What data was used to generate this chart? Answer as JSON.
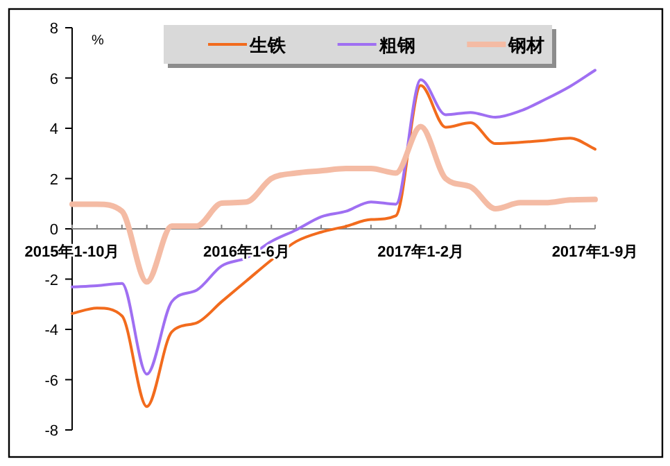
{
  "chart_data": {
    "type": "line",
    "ylabel": "%",
    "categories": [
      "2015年1-10月",
      null,
      null,
      null,
      null,
      null,
      null,
      "2016年1-6月",
      null,
      null,
      null,
      null,
      null,
      null,
      "2017年1-2月",
      null,
      null,
      null,
      null,
      null,
      null,
      "2017年1-9月"
    ],
    "ylim": [
      -8,
      8
    ],
    "yticks": [
      -8,
      -6,
      -4,
      -2,
      0,
      2,
      4,
      6,
      8
    ],
    "legend": "top",
    "series": [
      {
        "name": "生铁",
        "color": "#f26b1d",
        "values": [
          -3.37,
          -3.15,
          -3.46,
          -7.07,
          -4.1,
          -3.74,
          -2.9,
          -2.07,
          -1.24,
          -0.5,
          -0.13,
          0.1,
          0.37,
          0.52,
          5.7,
          4.04,
          4.22,
          3.39,
          3.44,
          3.52,
          3.61,
          3.17
        ]
      },
      {
        "name": "粗钢",
        "color": "#9f6ff2",
        "values": [
          -2.31,
          -2.26,
          -2.17,
          -5.78,
          -2.9,
          -2.44,
          -1.48,
          -1.15,
          -0.5,
          -0.04,
          0.48,
          0.7,
          1.07,
          0.98,
          5.93,
          4.54,
          4.63,
          4.44,
          4.69,
          5.15,
          5.67,
          6.31
        ]
      },
      {
        "name": "钢材",
        "color": "#f4bba4",
        "values": [
          0.98,
          0.98,
          0.7,
          -2.11,
          0.11,
          0.11,
          1.02,
          1.07,
          2.0,
          2.22,
          2.31,
          2.4,
          2.4,
          2.22,
          4.07,
          2.0,
          1.67,
          0.8,
          1.04,
          1.04,
          1.15,
          1.17
        ]
      }
    ]
  }
}
